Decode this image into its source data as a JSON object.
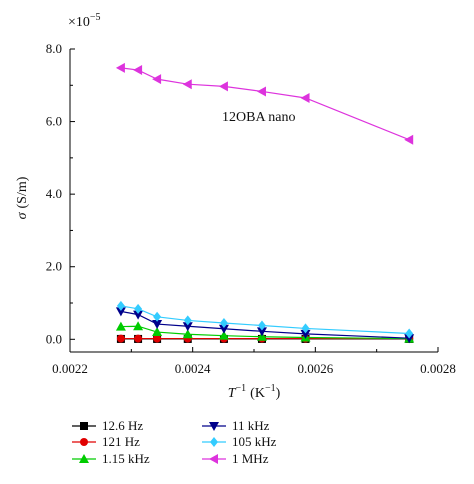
{
  "chart_data": {
    "type": "line",
    "title": "",
    "xlabel": "T",
    "xlabel_sup": "−1",
    "xlabel_unit": "(K",
    "xlabel_unit_sup": "−1",
    "xlabel_unit_close": ")",
    "ylabel_symbol": "σ",
    "ylabel_unit": "(S/m)",
    "y_multiplier": "×10",
    "y_multiplier_exp": "−5",
    "xlim": [
      0.0022,
      0.0028
    ],
    "ylim": [
      -0.35,
      8.0
    ],
    "x_ticks": [
      0.0022,
      0.0024,
      0.0026,
      0.0028
    ],
    "x_tick_labels": [
      "0.0022",
      "0.0024",
      "0.0026",
      "0.0028"
    ],
    "y_ticks": [
      0.0,
      2.0,
      4.0,
      6.0,
      8.0
    ],
    "y_tick_labels": [
      "0.0",
      "2.0",
      "4.0",
      "6.0",
      "8.0"
    ],
    "annotation": "12OBA nano",
    "x": [
      0.002283,
      0.002311,
      0.002342,
      0.002392,
      0.002451,
      0.002513,
      0.002584,
      0.002753
    ],
    "series": [
      {
        "name": "12.6 Hz",
        "color": "#000000",
        "marker": "square",
        "values": [
          0.01,
          0.01,
          0.01,
          0.01,
          0.01,
          0.01,
          0.01,
          0.01
        ]
      },
      {
        "name": "121 Hz",
        "color": "#e00000",
        "marker": "circle",
        "values": [
          0.02,
          0.02,
          0.02,
          0.02,
          0.02,
          0.02,
          0.02,
          0.02
        ]
      },
      {
        "name": "1.15 kHz",
        "color": "#00cc00",
        "marker": "triangle-up",
        "values": [
          0.35,
          0.36,
          0.2,
          0.14,
          0.1,
          0.07,
          0.05,
          0.02
        ]
      },
      {
        "name": "11 kHz",
        "color": "#00008b",
        "marker": "triangle-down",
        "values": [
          0.77,
          0.68,
          0.42,
          0.36,
          0.29,
          0.22,
          0.15,
          0.03
        ]
      },
      {
        "name": "105 kHz",
        "color": "#33ccff",
        "marker": "diamond",
        "values": [
          0.92,
          0.84,
          0.62,
          0.52,
          0.45,
          0.38,
          0.3,
          0.16
        ]
      },
      {
        "name": "1 MHz",
        "color": "#dd33dd",
        "marker": "triangle-left",
        "values": [
          7.48,
          7.42,
          7.17,
          7.03,
          6.97,
          6.83,
          6.65,
          5.5
        ]
      }
    ],
    "legend_placement": "bottom",
    "grid": false
  }
}
